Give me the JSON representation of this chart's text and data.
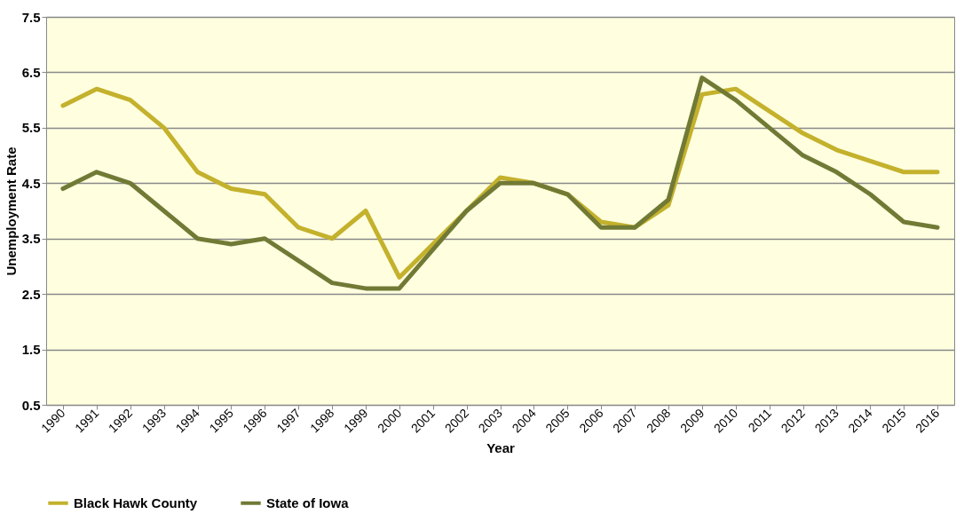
{
  "chart_data": {
    "type": "line",
    "xlabel": "Year",
    "ylabel": "Unemployment Rate",
    "categories": [
      "1990",
      "1991",
      "1992",
      "1993",
      "1994",
      "1995",
      "1996",
      "1997",
      "1998",
      "1999",
      "2000",
      "2001",
      "2002",
      "2003",
      "2004",
      "2005",
      "2006",
      "2007",
      "2008",
      "2009",
      "2010",
      "2011",
      "2012",
      "2013",
      "2014",
      "2015",
      "2016"
    ],
    "series": [
      {
        "name": "Black Hawk County",
        "color": "#c4b12c",
        "values": [
          5.9,
          6.2,
          6.0,
          5.5,
          4.7,
          4.4,
          4.3,
          3.7,
          3.5,
          4.0,
          2.8,
          3.4,
          4.0,
          4.6,
          4.5,
          4.3,
          3.8,
          3.7,
          4.1,
          6.1,
          6.2,
          5.8,
          5.4,
          5.1,
          4.9,
          4.7,
          4.7
        ]
      },
      {
        "name": "State of Iowa",
        "color": "#717a35",
        "values": [
          4.4,
          4.7,
          4.5,
          4.0,
          3.5,
          3.4,
          3.5,
          3.1,
          2.7,
          2.6,
          2.6,
          3.3,
          4.0,
          4.5,
          4.5,
          4.3,
          3.7,
          3.7,
          4.2,
          6.4,
          6.0,
          5.5,
          5.0,
          4.7,
          4.3,
          3.8,
          3.7
        ]
      }
    ],
    "ylim": [
      0.5,
      7.5
    ],
    "yticks": [
      0.5,
      1.5,
      2.5,
      3.5,
      4.5,
      5.5,
      6.5,
      7.5
    ],
    "grid": "y",
    "legend": "bottom",
    "marker": "none",
    "line_style": "solid"
  }
}
